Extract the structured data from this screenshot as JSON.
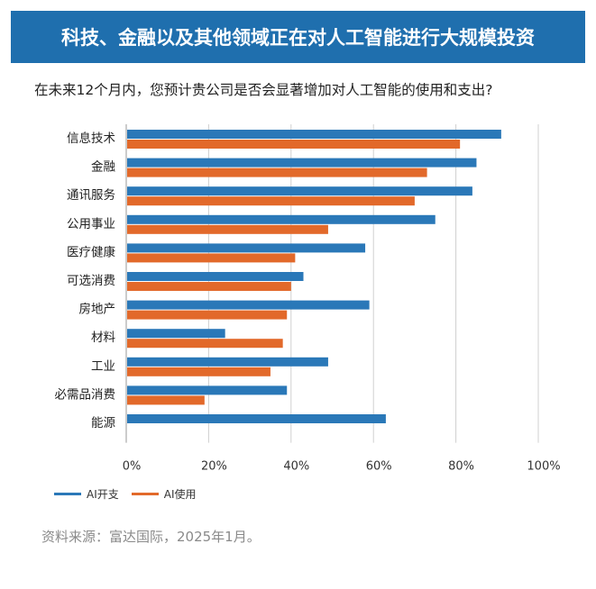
{
  "title": "科技、金融以及其他领域正在对人工智能进行大规模投资",
  "subtitle": "在未来12个月内，您预计贵公司是否会显著增加对人工智能的使用和支出?",
  "source": "资料来源：富达国际，2025年1月。",
  "colors": {
    "banner": "#1f6fae",
    "ai_spend": "#2a78b8",
    "ai_use": "#e2692a"
  },
  "chart_data": {
    "type": "bar",
    "orientation": "horizontal",
    "categories": [
      "信息技术",
      "金融",
      "通讯服务",
      "公用事业",
      "医疗健康",
      "可选消费",
      "房地产",
      "材料",
      "工业",
      "必需品消费",
      "能源"
    ],
    "series": [
      {
        "name": "AI开支",
        "values": [
          91,
          85,
          84,
          75,
          58,
          43,
          59,
          24,
          49,
          39,
          63
        ]
      },
      {
        "name": "AI使用",
        "values": [
          81,
          73,
          70,
          49,
          41,
          40,
          39,
          38,
          35,
          19,
          null
        ]
      }
    ],
    "xlim": [
      0,
      100
    ],
    "xticks": [
      "0%",
      "20%",
      "40%",
      "60%",
      "80%",
      "100%"
    ],
    "grid": true,
    "legend_position": "bottom-left"
  }
}
